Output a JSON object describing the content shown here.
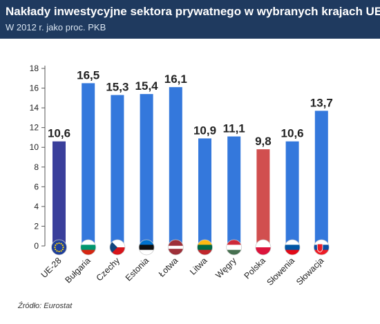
{
  "header": {
    "title": "Nakłady inwestycyjne sektora prywatnego w wybranych krajach UE",
    "subtitle": "W 2012 r. jako proc. PKB"
  },
  "source": "Źródło: Eurostat",
  "chart_data": {
    "type": "bar",
    "categories": [
      "UE-28",
      "Bułgaria",
      "Czechy",
      "Estonia",
      "Łotwa",
      "Litwa",
      "Węgry",
      "Polska",
      "Słowenia",
      "Słowacja"
    ],
    "values": [
      10.6,
      16.5,
      15.3,
      15.4,
      16.1,
      10.9,
      11.1,
      9.8,
      10.6,
      13.7
    ],
    "value_labels": [
      "10,6",
      "16,5",
      "15,3",
      "15,4",
      "16,1",
      "10,9",
      "11,1",
      "9,8",
      "10,6",
      "13,7"
    ],
    "bar_colors": [
      "#3a3f9b",
      "#3478dc",
      "#3478dc",
      "#3478dc",
      "#3478dc",
      "#3478dc",
      "#3478dc",
      "#d14f4f",
      "#3478dc",
      "#3478dc"
    ],
    "flags": [
      "eu-flag-icon",
      "bulgaria-flag-icon",
      "czech-flag-icon",
      "estonia-flag-icon",
      "latvia-flag-icon",
      "lithuania-flag-icon",
      "hungary-flag-icon",
      "poland-flag-icon",
      "slovenia-flag-icon",
      "slovakia-flag-icon"
    ],
    "yticks": [
      0,
      2,
      4,
      6,
      8,
      10,
      12,
      14,
      16,
      18
    ],
    "ylim": [
      0,
      18
    ],
    "grid": false,
    "colors": {
      "header": "#1f3a5f",
      "bar": "#3478dc",
      "eu": "#3a3f9b",
      "poland": "#d14f4f"
    }
  }
}
